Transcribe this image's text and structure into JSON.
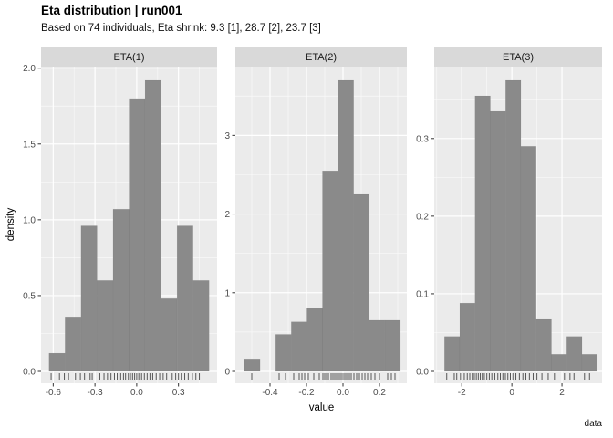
{
  "header": {
    "title": "Eta distribution | run001",
    "subtitle": "Based on 74 individuals, Eta shrink: 9.3 [1], 28.7 [2], 23.7 [3]"
  },
  "colors": {
    "panel_bg": "#EBEBEB",
    "strip_bg": "#D9D9D9",
    "bar_fill": "#8A8A8A",
    "grid_major": "#FFFFFF",
    "grid_minor": "#FFFFFF",
    "tick_text": "#4D4D4D",
    "axis_tick": "#333333",
    "rug": "#474747",
    "strip_text": "#1A1A1A"
  },
  "chart_data": {
    "type": "bar",
    "subtype": "faceted_histogram_with_rug",
    "title": "Eta distribution | run001",
    "subtitle": "Based on 74 individuals, Eta shrink: 9.3 [1], 28.7 [2], 23.7 [3]",
    "xlabel": "value",
    "ylabel": "density",
    "caption": "data",
    "n_individuals": 74,
    "shrinkage": [
      "9.3 [1]",
      "28.7 [2]",
      "23.7 [3]"
    ],
    "legend": "none",
    "grid": "on",
    "facets": [
      {
        "label": "ETA(1)",
        "bin_start": -0.63,
        "bin_width": 0.115,
        "heights": [
          0.12,
          0.36,
          0.96,
          0.6,
          1.07,
          1.8,
          1.92,
          0.48,
          0.96,
          0.6
        ],
        "x_domain": [
          -0.6875,
          0.5775
        ],
        "x_ticks": [
          -0.6,
          -0.3,
          0,
          0.3
        ],
        "x_tick_labels": [
          "-0.6",
          "-0.3",
          "0.0",
          "0.3"
        ],
        "x_minor": [
          -0.45,
          -0.15,
          0.15,
          0.45
        ],
        "y_ticks": [
          0,
          0.5,
          1,
          1.5,
          2
        ],
        "y_tick_labels": [
          "0.0",
          "0.5",
          "1.0",
          "1.5",
          "2.0"
        ],
        "y_minor": [
          0.25,
          0.75,
          1.25,
          1.75
        ],
        "ylim": [
          0,
          2.0
        ],
        "rug": [
          -0.615,
          -0.555,
          -0.52,
          -0.49,
          -0.44,
          -0.405,
          -0.375,
          -0.35,
          -0.335,
          -0.32,
          -0.265,
          -0.235,
          -0.21,
          -0.185,
          -0.16,
          -0.14,
          -0.115,
          -0.095,
          -0.08,
          -0.06,
          -0.045,
          -0.03,
          -0.015,
          0.0,
          0.015,
          0.035,
          0.055,
          0.075,
          0.095,
          0.115,
          0.14,
          0.165,
          0.19,
          0.215,
          0.255,
          0.28,
          0.3,
          0.32,
          0.345,
          0.37,
          0.4,
          0.425,
          0.45
        ]
      },
      {
        "label": "ETA(2)",
        "bin_start": -0.54,
        "bin_width": 0.0855,
        "heights": [
          0.16,
          0,
          0.47,
          0.63,
          0.8,
          2.55,
          3.7,
          2.25,
          0.65,
          0.65
        ],
        "x_domain": [
          -0.59,
          0.35
        ],
        "x_ticks": [
          -0.4,
          -0.2,
          0,
          0.2
        ],
        "x_tick_labels": [
          "-0.4",
          "-0.2",
          "0.0",
          "0.2"
        ],
        "x_minor": [
          -0.5,
          -0.3,
          -0.1,
          0.1,
          0.3
        ],
        "y_ticks": [
          0,
          1,
          2,
          3
        ],
        "y_tick_labels": [
          "0",
          "1",
          "2",
          "3"
        ],
        "y_minor": [
          0.5,
          1.5,
          2.5,
          3.5
        ],
        "ylim": [
          0,
          3.7
        ],
        "rug": [
          -0.5,
          -0.35,
          -0.315,
          -0.27,
          -0.24,
          -0.225,
          -0.21,
          -0.19,
          -0.16,
          -0.13,
          -0.11,
          -0.1,
          -0.09,
          -0.08,
          -0.065,
          -0.055,
          -0.045,
          -0.035,
          -0.025,
          -0.015,
          -0.005,
          0.005,
          0.015,
          0.025,
          0.035,
          0.045,
          0.06,
          0.075,
          0.09,
          0.105,
          0.12,
          0.135,
          0.155,
          0.175,
          0.2,
          0.245,
          0.265,
          0.285
        ]
      },
      {
        "label": "ETA(3)",
        "bin_start": -2.69,
        "bin_width": 0.61,
        "heights": [
          0.045,
          0.088,
          0.355,
          0.335,
          0.375,
          0.29,
          0.067,
          0.022,
          0.045,
          0.022
        ],
        "x_domain": [
          -3.1,
          3.6
        ],
        "x_ticks": [
          -2,
          0,
          2
        ],
        "x_tick_labels": [
          "-2",
          "0",
          "2"
        ],
        "x_minor": [
          -3,
          -1,
          1,
          3
        ],
        "y_ticks": [
          0,
          0.1,
          0.2,
          0.3
        ],
        "y_tick_labels": [
          "0.0",
          "0.1",
          "0.2",
          "0.3"
        ],
        "y_minor": [
          0.05,
          0.15,
          0.25,
          0.35
        ],
        "ylim": [
          0,
          0.375
        ],
        "rug": [
          -2.6,
          -2.3,
          -2.2,
          -2.05,
          -1.9,
          -1.78,
          -1.68,
          -1.58,
          -1.5,
          -1.42,
          -1.34,
          -1.26,
          -1.18,
          -1.1,
          -1.0,
          -0.9,
          -0.8,
          -0.68,
          -0.56,
          -0.46,
          -0.36,
          -0.26,
          -0.16,
          -0.06,
          0.04,
          0.16,
          0.3,
          0.44,
          0.56,
          0.7,
          0.85,
          1.0,
          1.2,
          1.45,
          1.7,
          2.1,
          2.32,
          2.48,
          2.9,
          3.1
        ]
      }
    ]
  }
}
